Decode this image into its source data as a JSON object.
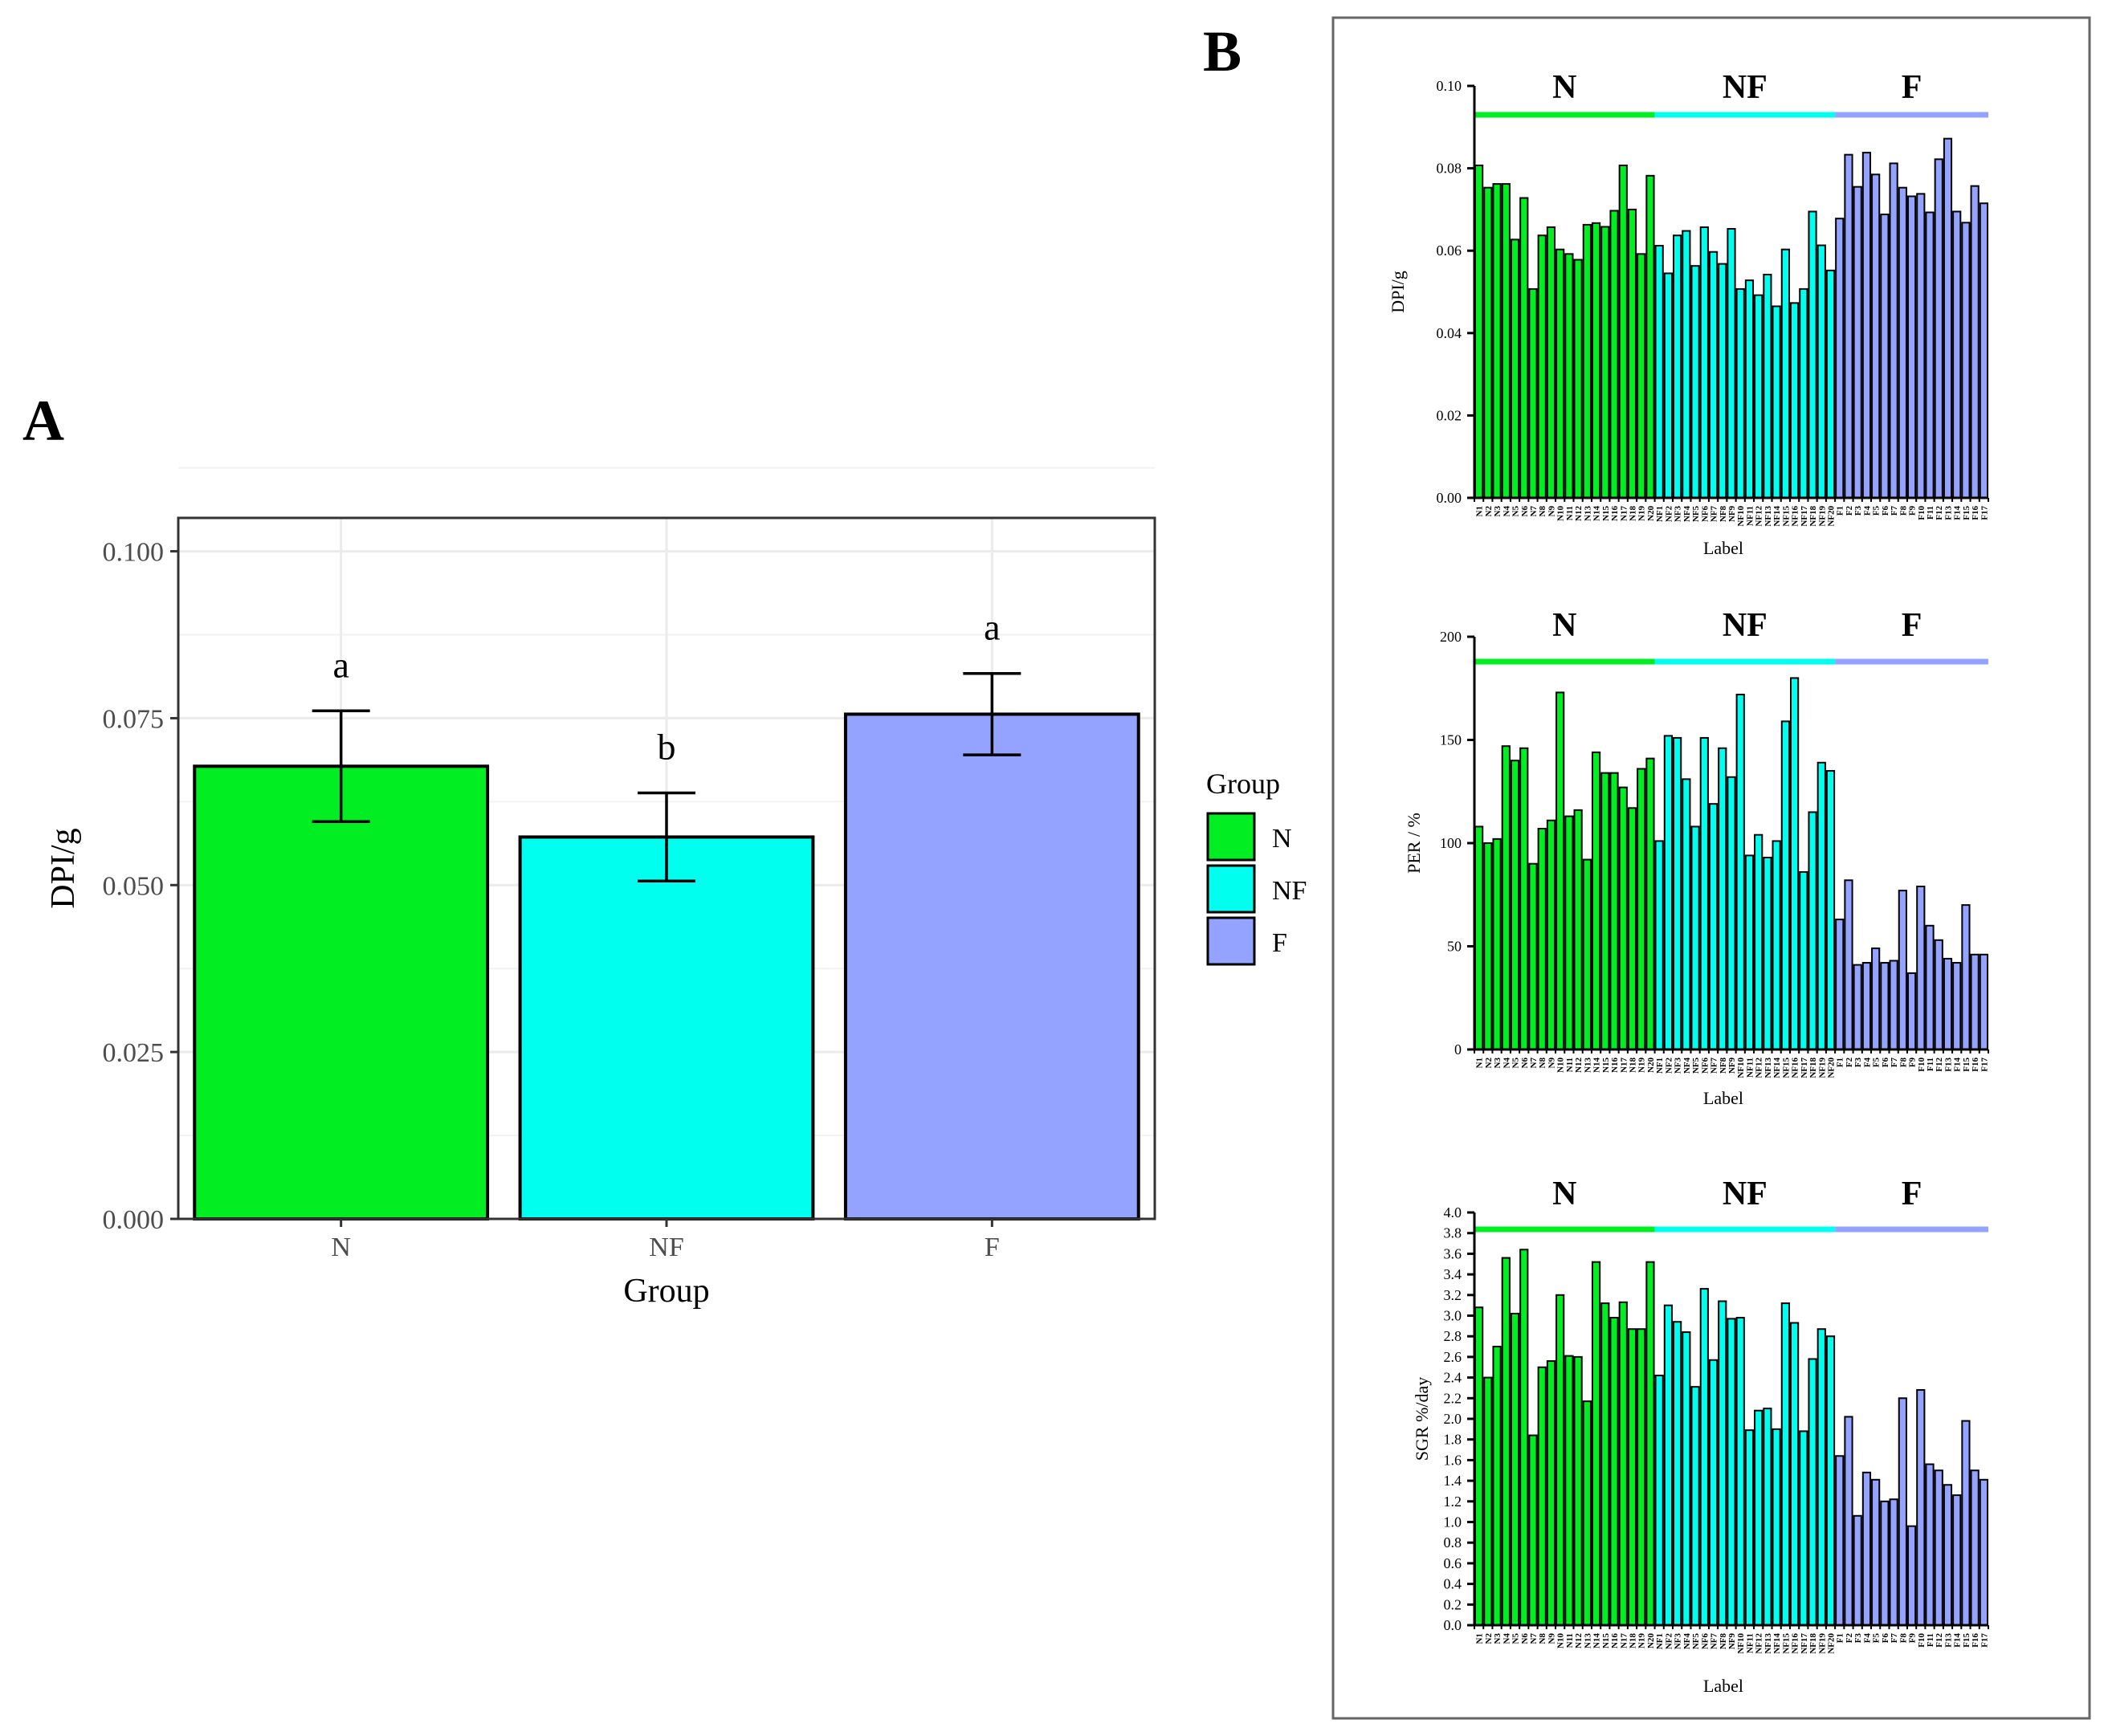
{
  "panel_labels": {
    "a": "A",
    "b": "B"
  },
  "colors": {
    "N": "#00ee22",
    "NF": "#00ffee",
    "F": "#93a3ff",
    "stroke": "#000000",
    "grid": "#ebebeb",
    "panel_border": "#666666"
  },
  "chart_data": [
    {
      "type": "bar",
      "panel": "A",
      "categories": [
        "N",
        "NF",
        "F"
      ],
      "values": [
        0.0678,
        0.0572,
        0.0756
      ],
      "error": [
        0.0083,
        0.0066,
        0.0061
      ],
      "letters": [
        "a",
        "b",
        "a"
      ],
      "xlabel": "Group",
      "ylabel": "DPI/g",
      "ylim": [
        0,
        0.105
      ],
      "yticks": [
        0.0,
        0.025,
        0.05,
        0.075,
        0.1
      ],
      "ytick_labels": [
        "0.000",
        "0.025",
        "0.050",
        "0.075",
        "0.100"
      ],
      "legend": {
        "title": "Group",
        "entries": [
          "N",
          "NF",
          "F"
        ],
        "position": "right"
      }
    },
    {
      "type": "bar",
      "panel": "B1",
      "groups": [
        {
          "name": "N",
          "count": 20
        },
        {
          "name": "NF",
          "count": 20
        },
        {
          "name": "F",
          "count": 17
        }
      ],
      "categories": [
        "N1",
        "N2",
        "N3",
        "N4",
        "N5",
        "N6",
        "N7",
        "N8",
        "N9",
        "N10",
        "N11",
        "N12",
        "N13",
        "N14",
        "N15",
        "N16",
        "N17",
        "N18",
        "N19",
        "N20",
        "NF1",
        "NF2",
        "NF3",
        "NF4",
        "NF5",
        "NF6",
        "NF7",
        "NF8",
        "NF9",
        "NF10",
        "NF11",
        "NF12",
        "NF13",
        "NF14",
        "NF15",
        "NF16",
        "NF17",
        "NF18",
        "NF19",
        "NF20",
        "F1",
        "F2",
        "F3",
        "F4",
        "F5",
        "F6",
        "F7",
        "F8",
        "F9",
        "F10",
        "F11",
        "F12",
        "F13",
        "F14",
        "F15",
        "F16",
        "F17"
      ],
      "values": [
        0.0807,
        0.0753,
        0.0762,
        0.0762,
        0.0627,
        0.0728,
        0.0507,
        0.0637,
        0.0657,
        0.0603,
        0.0592,
        0.0578,
        0.0663,
        0.0667,
        0.0658,
        0.0697,
        0.0807,
        0.07,
        0.0592,
        0.0782,
        0.0612,
        0.0545,
        0.0637,
        0.0648,
        0.0563,
        0.0657,
        0.0597,
        0.0568,
        0.0653,
        0.0507,
        0.0528,
        0.0492,
        0.0542,
        0.0465,
        0.0603,
        0.0473,
        0.0507,
        0.0695,
        0.0613,
        0.0552,
        0.0678,
        0.0833,
        0.0755,
        0.0838,
        0.0785,
        0.0688,
        0.0812,
        0.0753,
        0.0732,
        0.0738,
        0.0693,
        0.0822,
        0.0872,
        0.0695,
        0.0668,
        0.0757,
        0.0715
      ],
      "xlabel": "Label",
      "ylabel": "DPI/g",
      "ylim": [
        0,
        0.1
      ],
      "yticks": [
        0,
        0.02,
        0.04,
        0.06,
        0.08,
        0.1
      ],
      "ytick_labels": [
        "0.00",
        "0.02",
        "0.04",
        "0.06",
        "0.08",
        "0.10"
      ]
    },
    {
      "type": "bar",
      "panel": "B2",
      "groups": [
        {
          "name": "N",
          "count": 20
        },
        {
          "name": "NF",
          "count": 20
        },
        {
          "name": "F",
          "count": 17
        }
      ],
      "categories": [
        "N1",
        "N2",
        "N3",
        "N4",
        "N5",
        "N6",
        "N7",
        "N8",
        "N9",
        "N10",
        "N11",
        "N12",
        "N13",
        "N14",
        "N15",
        "N16",
        "N17",
        "N18",
        "N19",
        "N20",
        "NF1",
        "NF2",
        "NF3",
        "NF4",
        "NF5",
        "NF6",
        "NF7",
        "NF8",
        "NF9",
        "NF10",
        "NF11",
        "NF12",
        "NF13",
        "NF14",
        "NF15",
        "NF16",
        "NF17",
        "NF18",
        "NF19",
        "NF20",
        "F1",
        "F2",
        "F3",
        "F4",
        "F5",
        "F6",
        "F7",
        "F8",
        "F9",
        "F10",
        "F11",
        "F12",
        "F13",
        "F14",
        "F15",
        "F16",
        "F17"
      ],
      "values": [
        108,
        100,
        102,
        147,
        140,
        146,
        90,
        107,
        111,
        173,
        113,
        116,
        92,
        144,
        134,
        134,
        127,
        117,
        136,
        141,
        101,
        152,
        151,
        131,
        108,
        151,
        119,
        146,
        132,
        172,
        94,
        104,
        93,
        101,
        159,
        180,
        86,
        115,
        139,
        135,
        63,
        82,
        41,
        42,
        49,
        42,
        43,
        77,
        37,
        79,
        60,
        53,
        44,
        42,
        70,
        46,
        46
      ],
      "xlabel": "Label",
      "ylabel": "PER / %",
      "ylim": [
        0,
        200
      ],
      "yticks": [
        0,
        50,
        100,
        150,
        200
      ],
      "ytick_labels": [
        "0",
        "50",
        "100",
        "150",
        "200"
      ]
    },
    {
      "type": "bar",
      "panel": "B3",
      "groups": [
        {
          "name": "N",
          "count": 20
        },
        {
          "name": "NF",
          "count": 20
        },
        {
          "name": "F",
          "count": 17
        }
      ],
      "categories": [
        "N1",
        "N2",
        "N3",
        "N4",
        "N5",
        "N6",
        "N7",
        "N8",
        "N9",
        "N10",
        "N11",
        "N12",
        "N13",
        "N14",
        "N15",
        "N16",
        "N17",
        "N18",
        "N19",
        "N20",
        "NF1",
        "NF2",
        "NF3",
        "NF4",
        "NF5",
        "NF6",
        "NF7",
        "NF8",
        "NF9",
        "NF10",
        "NF11",
        "NF12",
        "NF13",
        "NF14",
        "NF15",
        "NF16",
        "NF17",
        "NF18",
        "NF19",
        "NF20",
        "F1",
        "F2",
        "F3",
        "F4",
        "F5",
        "F6",
        "F7",
        "F8",
        "F9",
        "F10",
        "F11",
        "F12",
        "F13",
        "F14",
        "F15",
        "F16",
        "F17"
      ],
      "values": [
        3.08,
        2.4,
        2.7,
        3.56,
        3.02,
        3.64,
        1.84,
        2.5,
        2.56,
        3.2,
        2.61,
        2.6,
        2.17,
        3.52,
        3.12,
        2.98,
        3.13,
        2.87,
        2.87,
        3.52,
        2.42,
        3.1,
        2.94,
        2.84,
        2.31,
        3.26,
        2.57,
        3.14,
        2.97,
        2.98,
        1.89,
        2.08,
        2.1,
        1.9,
        3.12,
        2.93,
        1.88,
        2.58,
        2.87,
        2.8,
        1.64,
        2.02,
        1.06,
        1.48,
        1.41,
        1.2,
        1.22,
        2.2,
        0.96,
        2.28,
        1.56,
        1.5,
        1.36,
        1.26,
        1.98,
        1.5,
        1.41
      ],
      "xlabel": "Label",
      "ylabel": "SGR %/day",
      "ylim": [
        0,
        4.0
      ],
      "yticks": [
        0,
        0.2,
        0.4,
        0.6,
        0.8,
        1.0,
        1.2,
        1.4,
        1.6,
        1.8,
        2.0,
        2.2,
        2.4,
        2.6,
        2.8,
        3.0,
        3.2,
        3.4,
        3.6,
        3.8,
        4.0
      ],
      "ytick_labels": [
        "0.0",
        "0.2",
        "0.4",
        "0.6",
        "0.8",
        "1.0",
        "1.2",
        "1.4",
        "1.6",
        "1.8",
        "2.0",
        "2.2",
        "2.4",
        "2.6",
        "2.8",
        "3.0",
        "3.2",
        "3.4",
        "3.6",
        "3.8",
        "4.0"
      ]
    }
  ]
}
